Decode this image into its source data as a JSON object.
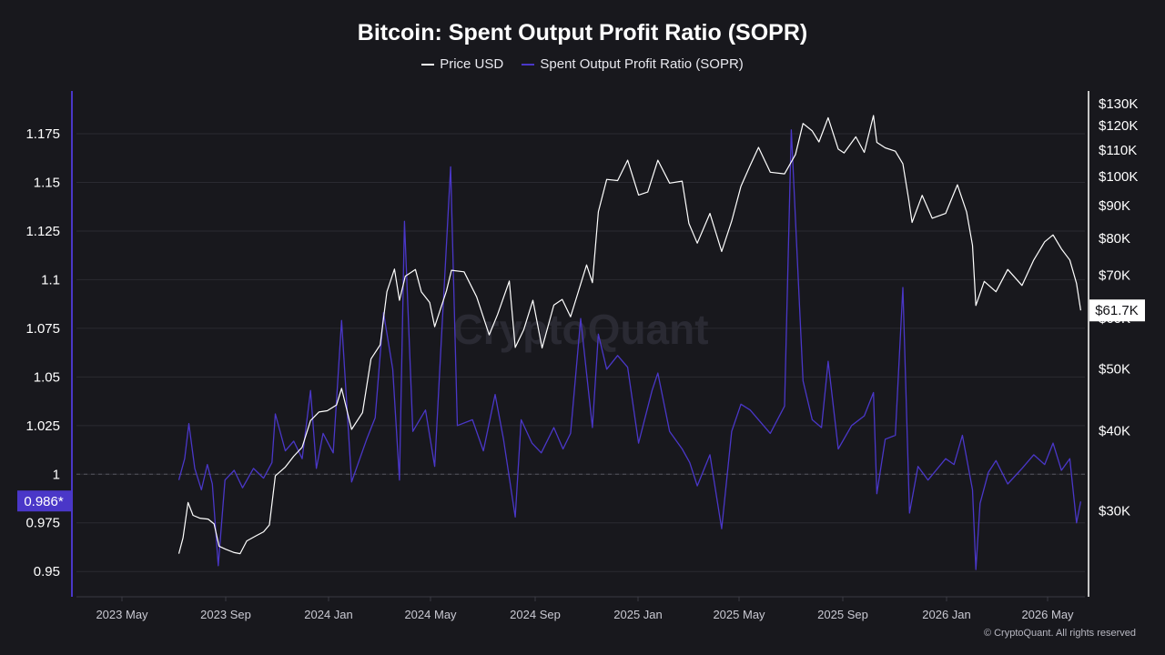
{
  "chart_data": {
    "type": "line",
    "title": "Bitcoin: Spent Output Profit Ratio (SOPR)",
    "x_tick_labels": [
      "2023 May",
      "2023 Sep",
      "2024 Jan",
      "2024 May",
      "2024 Sep",
      "2025 Jan",
      "2025 May",
      "2025 Sep",
      "2026 Jan",
      "2026 May"
    ],
    "x_range": [
      "2023-03-01",
      "2026-06-15"
    ],
    "left_axis": {
      "ticks": [
        "1.175",
        "1.15",
        "1.125",
        "1.1",
        "1.075",
        "1.05",
        "1.025",
        "1",
        "0.975",
        "0.95"
      ],
      "tick_values": [
        1.175,
        1.15,
        1.125,
        1.1,
        1.075,
        1.05,
        1.025,
        1.0,
        0.975,
        0.95
      ],
      "ylim": [
        0.937,
        1.197
      ],
      "reference_line": 1.0,
      "current_value_label": "0.986*"
    },
    "right_axis": {
      "scale": "log",
      "ticks": [
        "$130K",
        "$120K",
        "$110K",
        "$100K",
        "$90K",
        "$80K",
        "$70K",
        "$60K",
        "$50K",
        "$40K",
        "$30K"
      ],
      "tick_values": [
        130000,
        120000,
        110000,
        100000,
        90000,
        80000,
        70000,
        60000,
        50000,
        40000,
        30000
      ],
      "ylim": [
        22000,
        136000
      ],
      "current_value_label": "$61.7K"
    },
    "series": [
      {
        "name": "Price USD",
        "color": "#ffffff",
        "axis": "right",
        "points": [
          [
            "2023-07-01",
            25700
          ],
          [
            "2023-07-06",
            27200
          ],
          [
            "2023-07-12",
            30900
          ],
          [
            "2023-07-18",
            29500
          ],
          [
            "2023-07-26",
            29200
          ],
          [
            "2023-08-05",
            29100
          ],
          [
            "2023-08-12",
            28600
          ],
          [
            "2023-08-18",
            26400
          ],
          [
            "2023-08-26",
            26100
          ],
          [
            "2023-09-05",
            25800
          ],
          [
            "2023-09-12",
            25700
          ],
          [
            "2023-09-20",
            26900
          ],
          [
            "2023-10-01",
            27400
          ],
          [
            "2023-10-10",
            27800
          ],
          [
            "2023-10-17",
            28500
          ],
          [
            "2023-10-24",
            34000
          ],
          [
            "2023-11-05",
            35100
          ],
          [
            "2023-11-15",
            36500
          ],
          [
            "2023-11-25",
            37700
          ],
          [
            "2023-12-05",
            41500
          ],
          [
            "2023-12-15",
            42800
          ],
          [
            "2023-12-25",
            43000
          ],
          [
            "2024-01-05",
            43900
          ],
          [
            "2024-01-11",
            46600
          ],
          [
            "2024-01-23",
            40200
          ],
          [
            "2024-02-05",
            42700
          ],
          [
            "2024-02-15",
            51800
          ],
          [
            "2024-02-26",
            54500
          ],
          [
            "2024-03-05",
            66000
          ],
          [
            "2024-03-14",
            71600
          ],
          [
            "2024-03-20",
            64000
          ],
          [
            "2024-03-27",
            69800
          ],
          [
            "2024-04-08",
            71500
          ],
          [
            "2024-04-15",
            66000
          ],
          [
            "2024-04-25",
            63500
          ],
          [
            "2024-05-01",
            58200
          ],
          [
            "2024-05-15",
            66200
          ],
          [
            "2024-05-21",
            71300
          ],
          [
            "2024-06-05",
            70900
          ],
          [
            "2024-06-20",
            64800
          ],
          [
            "2024-07-05",
            56500
          ],
          [
            "2024-07-15",
            60800
          ],
          [
            "2024-07-29",
            68600
          ],
          [
            "2024-08-05",
            54000
          ],
          [
            "2024-08-15",
            57500
          ],
          [
            "2024-08-26",
            64000
          ],
          [
            "2024-09-06",
            53900
          ],
          [
            "2024-09-20",
            62900
          ],
          [
            "2024-09-30",
            64200
          ],
          [
            "2024-10-10",
            60300
          ],
          [
            "2024-10-29",
            72700
          ],
          [
            "2024-11-05",
            68200
          ],
          [
            "2024-11-12",
            88000
          ],
          [
            "2024-11-22",
            98900
          ],
          [
            "2024-12-05",
            98500
          ],
          [
            "2024-12-17",
            106000
          ],
          [
            "2024-12-30",
            93500
          ],
          [
            "2025-01-10",
            94500
          ],
          [
            "2025-01-22",
            106000
          ],
          [
            "2025-02-05",
            97600
          ],
          [
            "2025-02-20",
            98300
          ],
          [
            "2025-02-28",
            84400
          ],
          [
            "2025-03-10",
            78600
          ],
          [
            "2025-03-25",
            87500
          ],
          [
            "2025-04-08",
            76300
          ],
          [
            "2025-04-20",
            85100
          ],
          [
            "2025-05-01",
            96500
          ],
          [
            "2025-05-12",
            104000
          ],
          [
            "2025-05-22",
            111000
          ],
          [
            "2025-06-05",
            101500
          ],
          [
            "2025-06-22",
            100900
          ],
          [
            "2025-07-05",
            108200
          ],
          [
            "2025-07-14",
            121000
          ],
          [
            "2025-07-25",
            117800
          ],
          [
            "2025-08-02",
            113200
          ],
          [
            "2025-08-13",
            123500
          ],
          [
            "2025-08-25",
            110300
          ],
          [
            "2025-09-01",
            108800
          ],
          [
            "2025-09-15",
            115300
          ],
          [
            "2025-09-25",
            109000
          ],
          [
            "2025-10-06",
            124500
          ],
          [
            "2025-10-10",
            113000
          ],
          [
            "2025-10-20",
            110800
          ],
          [
            "2025-11-01",
            109500
          ],
          [
            "2025-11-10",
            104600
          ],
          [
            "2025-11-17",
            92000
          ],
          [
            "2025-11-21",
            84700
          ],
          [
            "2025-12-03",
            93400
          ],
          [
            "2025-12-15",
            86000
          ],
          [
            "2025-12-31",
            87500
          ],
          [
            "2026-01-14",
            97000
          ],
          [
            "2026-01-25",
            88000
          ],
          [
            "2026-02-01",
            78000
          ],
          [
            "2026-02-05",
            62800
          ],
          [
            "2026-02-15",
            68500
          ],
          [
            "2026-03-01",
            66000
          ],
          [
            "2026-03-15",
            71500
          ],
          [
            "2026-04-01",
            67500
          ],
          [
            "2026-04-15",
            74000
          ],
          [
            "2026-04-28",
            79000
          ],
          [
            "2026-05-08",
            81000
          ],
          [
            "2026-05-18",
            77000
          ],
          [
            "2026-05-28",
            74000
          ],
          [
            "2026-06-05",
            68000
          ],
          [
            "2026-06-10",
            61700
          ]
        ]
      },
      {
        "name": "Spent Output Profit Ratio (SOPR)",
        "color": "#4a37c8",
        "axis": "left",
        "points": [
          [
            "2023-07-01",
            0.997
          ],
          [
            "2023-07-08",
            1.008
          ],
          [
            "2023-07-13",
            1.026
          ],
          [
            "2023-07-20",
            1.003
          ],
          [
            "2023-07-28",
            0.992
          ],
          [
            "2023-08-04",
            1.005
          ],
          [
            "2023-08-10",
            0.995
          ],
          [
            "2023-08-17",
            0.953
          ],
          [
            "2023-08-25",
            0.997
          ],
          [
            "2023-09-05",
            1.002
          ],
          [
            "2023-09-15",
            0.993
          ],
          [
            "2023-09-28",
            1.003
          ],
          [
            "2023-10-10",
            0.998
          ],
          [
            "2023-10-20",
            1.006
          ],
          [
            "2023-10-24",
            1.031
          ],
          [
            "2023-11-05",
            1.012
          ],
          [
            "2023-11-15",
            1.017
          ],
          [
            "2023-11-25",
            1.008
          ],
          [
            "2023-12-05",
            1.043
          ],
          [
            "2023-12-12",
            1.003
          ],
          [
            "2023-12-20",
            1.021
          ],
          [
            "2024-01-01",
            1.011
          ],
          [
            "2024-01-11",
            1.079
          ],
          [
            "2024-01-23",
            0.996
          ],
          [
            "2024-02-10",
            1.018
          ],
          [
            "2024-02-20",
            1.029
          ],
          [
            "2024-03-01",
            1.083
          ],
          [
            "2024-03-12",
            1.054
          ],
          [
            "2024-03-20",
            0.997
          ],
          [
            "2024-03-26",
            1.13
          ],
          [
            "2024-04-05",
            1.022
          ],
          [
            "2024-04-20",
            1.033
          ],
          [
            "2024-05-01",
            1.004
          ],
          [
            "2024-05-08",
            1.062
          ],
          [
            "2024-05-20",
            1.158
          ],
          [
            "2024-05-28",
            1.025
          ],
          [
            "2024-06-15",
            1.028
          ],
          [
            "2024-06-28",
            1.012
          ],
          [
            "2024-07-12",
            1.041
          ],
          [
            "2024-07-22",
            1.018
          ],
          [
            "2024-08-05",
            0.978
          ],
          [
            "2024-08-12",
            1.028
          ],
          [
            "2024-08-25",
            1.016
          ],
          [
            "2024-09-05",
            1.011
          ],
          [
            "2024-09-20",
            1.024
          ],
          [
            "2024-10-01",
            1.013
          ],
          [
            "2024-10-10",
            1.021
          ],
          [
            "2024-10-22",
            1.08
          ],
          [
            "2024-11-05",
            1.024
          ],
          [
            "2024-11-12",
            1.072
          ],
          [
            "2024-11-22",
            1.054
          ],
          [
            "2024-12-05",
            1.061
          ],
          [
            "2024-12-17",
            1.055
          ],
          [
            "2024-12-30",
            1.016
          ],
          [
            "2025-01-15",
            1.043
          ],
          [
            "2025-01-22",
            1.052
          ],
          [
            "2025-02-05",
            1.022
          ],
          [
            "2025-02-20",
            1.013
          ],
          [
            "2025-03-01",
            1.006
          ],
          [
            "2025-03-10",
            0.994
          ],
          [
            "2025-03-25",
            1.01
          ],
          [
            "2025-04-08",
            0.972
          ],
          [
            "2025-04-20",
            1.022
          ],
          [
            "2025-05-01",
            1.036
          ],
          [
            "2025-05-12",
            1.033
          ],
          [
            "2025-05-22",
            1.028
          ],
          [
            "2025-06-05",
            1.021
          ],
          [
            "2025-06-22",
            1.035
          ],
          [
            "2025-06-30",
            1.177
          ],
          [
            "2025-07-14",
            1.048
          ],
          [
            "2025-07-25",
            1.028
          ],
          [
            "2025-08-05",
            1.024
          ],
          [
            "2025-08-13",
            1.058
          ],
          [
            "2025-08-25",
            1.013
          ],
          [
            "2025-09-10",
            1.025
          ],
          [
            "2025-09-25",
            1.03
          ],
          [
            "2025-10-06",
            1.042
          ],
          [
            "2025-10-10",
            0.99
          ],
          [
            "2025-10-20",
            1.018
          ],
          [
            "2025-11-01",
            1.02
          ],
          [
            "2025-11-10",
            1.096
          ],
          [
            "2025-11-18",
            0.98
          ],
          [
            "2025-11-28",
            1.004
          ],
          [
            "2025-12-10",
            0.997
          ],
          [
            "2025-12-31",
            1.008
          ],
          [
            "2026-01-10",
            1.005
          ],
          [
            "2026-01-20",
            1.02
          ],
          [
            "2026-02-01",
            0.992
          ],
          [
            "2026-02-05",
            0.951
          ],
          [
            "2026-02-10",
            0.985
          ],
          [
            "2026-02-20",
            1.001
          ],
          [
            "2026-03-01",
            1.007
          ],
          [
            "2026-03-15",
            0.995
          ],
          [
            "2026-04-01",
            1.003
          ],
          [
            "2026-04-15",
            1.01
          ],
          [
            "2026-04-28",
            1.005
          ],
          [
            "2026-05-08",
            1.016
          ],
          [
            "2026-05-18",
            1.002
          ],
          [
            "2026-05-28",
            1.008
          ],
          [
            "2026-06-05",
            0.975
          ],
          [
            "2026-06-10",
            0.986
          ]
        ]
      }
    ],
    "grid": true,
    "legend_position": "top-center",
    "watermark": "CryptoQuant"
  },
  "footer": "© CryptoQuant. All rights reserved"
}
